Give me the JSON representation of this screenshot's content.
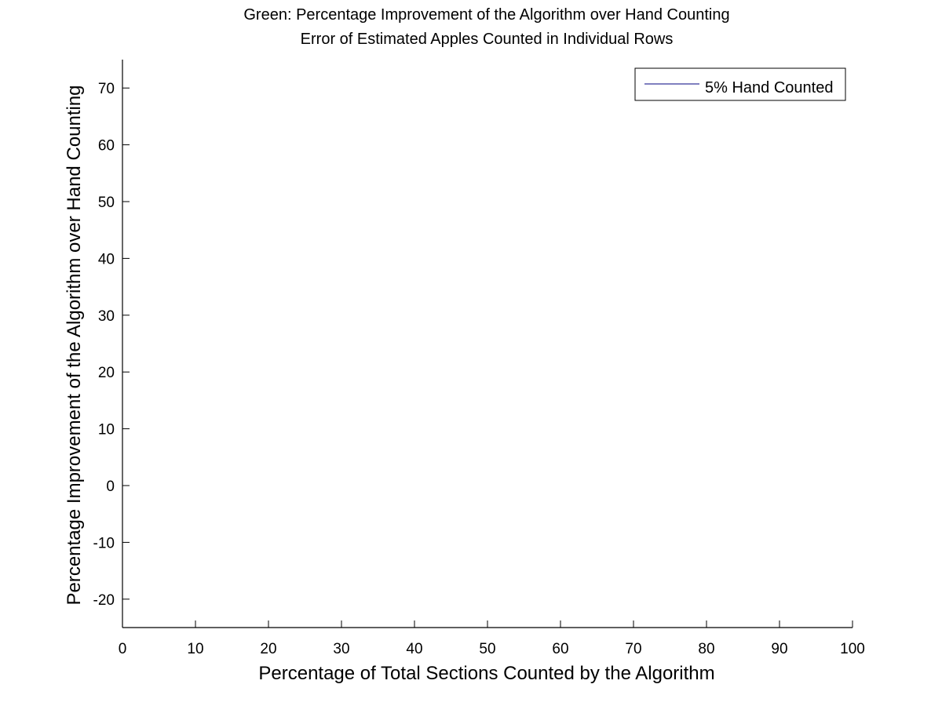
{
  "chart_data": {
    "type": "line",
    "title": [
      "Green: Percentage Improvement of the Algorithm over Hand Counting",
      "Error of Estimated Apples Counted in Individual Rows"
    ],
    "xlabel": "Percentage of Total Sections Counted by the Algorithm",
    "ylabel": "Percentage Improvement of the Algorithm over Hand Counting",
    "xlim": [
      0,
      100
    ],
    "ylim": [
      -25,
      75
    ],
    "xticks": [
      0,
      10,
      20,
      30,
      40,
      50,
      60,
      70,
      80,
      90,
      100
    ],
    "yticks": [
      -20,
      -10,
      0,
      10,
      20,
      30,
      40,
      50,
      60,
      70
    ],
    "grid": false,
    "legend_position": "top-right",
    "series": [
      {
        "name": "5% Hand Counted",
        "color": "#00007f",
        "x": [],
        "y": []
      }
    ]
  }
}
